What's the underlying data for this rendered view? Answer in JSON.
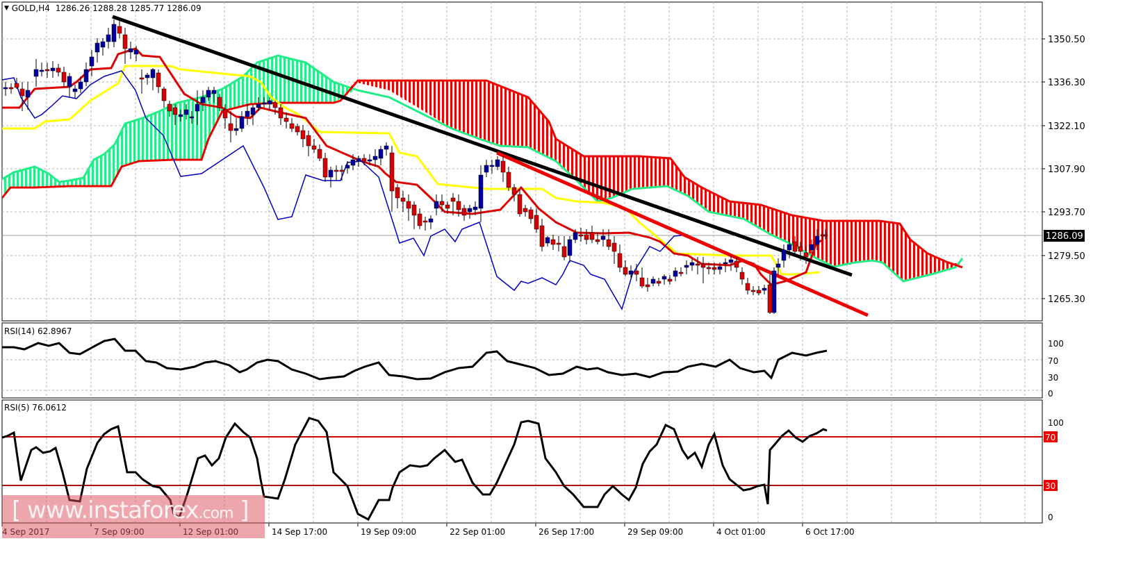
{
  "header": {
    "menu_icon": "triangle-down-icon",
    "symbol": "GOLD,H4",
    "ohlc": "1286.26 1288.28 1285.77 1286.09"
  },
  "price_axis": {
    "ticks": [
      "1350.50",
      "1336.30",
      "1322.10",
      "1307.90",
      "1293.70",
      "1279.50",
      "1265.30"
    ],
    "current_price": "1286.09"
  },
  "time_axis": {
    "ticks": [
      "4 Sep 2017",
      "7 Sep 09:00",
      "12 Sep 01:00",
      "14 Sep 17:00",
      "19 Sep 09:00",
      "22 Sep 01:00",
      "26 Sep 17:00",
      "29 Sep 09:00",
      "4 Oct 01:00",
      "6 Oct 17:00"
    ]
  },
  "rsi14": {
    "label": "RSI(14) 62.8967",
    "axis_ticks": [
      "100",
      "70",
      "30",
      "0"
    ]
  },
  "rsi5": {
    "label": "RSI(5) 76.0612",
    "axis_ticks": [
      "100",
      "0"
    ],
    "level_labels": [
      "70",
      "30"
    ]
  },
  "watermark": {
    "text": "[ www.instaforex",
    "suffix": ".com",
    "close": " ]"
  },
  "colors": {
    "bull_candle": "#0000a0",
    "bear_candle": "#dd0000",
    "tenkan": "#dd0000",
    "kijun": "#ffff00",
    "chikou": "#0000c0",
    "cloud_bull": "#22ee88",
    "cloud_bear": "#ee0000",
    "trendline_black": "#000000",
    "trendline_red": "#ee0000",
    "rsi_levels": "#cc0000"
  },
  "chart_data": [
    {
      "type": "candlestick",
      "title": "GOLD,H4",
      "subtitle": "O 1286.26 H 1288.28 L 1285.77 C 1286.09",
      "indicators": [
        "Ichimoku Kinko Hyo (Tenkan red, Kijun yellow, Chikou blue, Kumo cloud green/red)",
        "Black descending trendline",
        "Red descending trendline"
      ],
      "x_ticks": [
        "4 Sep 2017",
        "7 Sep 09:00",
        "12 Sep 01:00",
        "14 Sep 17:00",
        "19 Sep 09:00",
        "22 Sep 01:00",
        "26 Sep 17:00",
        "29 Sep 09:00",
        "4 Oct 01:00",
        "6 Oct 17:00"
      ],
      "y_ticks": [
        1350.5,
        1336.3,
        1322.1,
        1307.9,
        1293.7,
        1279.5,
        1265.3
      ],
      "ylim": [
        1258,
        1362
      ],
      "last_price": 1286.09,
      "approx_close_path": {
        "dates": [
          "4 Sep",
          "7 Sep",
          "8 Sep",
          "12 Sep",
          "14 Sep",
          "18 Sep",
          "19 Sep",
          "21 Sep",
          "22 Sep",
          "25 Sep",
          "26 Sep",
          "28 Sep",
          "29 Sep",
          "2 Oct",
          "4 Oct",
          "5 Oct",
          "6 Oct",
          "9 Oct"
        ],
        "values": [
          1334,
          1350,
          1340,
          1326,
          1329,
          1318,
          1308,
          1298,
          1292,
          1303,
          1292,
          1285,
          1278,
          1271,
          1275,
          1270,
          1262,
          1286
        ]
      },
      "trendlines": [
        {
          "name": "black",
          "from": [
            "7 Sep",
            1354
          ],
          "to": [
            "9 Oct",
            1273
          ]
        },
        {
          "name": "red",
          "from": [
            "22 Sep",
            1313
          ],
          "to": [
            "10 Oct",
            1260
          ]
        }
      ],
      "grid": true
    },
    {
      "type": "line",
      "title": "RSI(14) 62.8967",
      "ylim": [
        0,
        100
      ],
      "y_ticks": [
        100,
        70,
        30,
        0
      ],
      "last_value": 62.8967,
      "approx_values": [
        68,
        73,
        72,
        78,
        62,
        58,
        38,
        34,
        48,
        52,
        38,
        32,
        30,
        45,
        40,
        38,
        28,
        30,
        38,
        42,
        52,
        44,
        42,
        62,
        58,
        40,
        30,
        32,
        48,
        40,
        32,
        30,
        36,
        46,
        40,
        38,
        48,
        40,
        36,
        26,
        48,
        58,
        56,
        62,
        63
      ]
    },
    {
      "type": "line",
      "title": "RSI(5) 76.0612",
      "ylim": [
        0,
        100
      ],
      "y_ticks": [
        100,
        70,
        30,
        0
      ],
      "levels": [
        70,
        30
      ],
      "last_value": 76.0612,
      "approx_values": [
        88,
        65,
        78,
        72,
        40,
        78,
        92,
        70,
        28,
        30,
        15,
        10,
        55,
        60,
        24,
        16,
        70,
        72,
        38,
        20,
        5,
        30,
        35,
        55,
        72,
        65,
        20,
        15,
        12,
        58,
        62,
        50,
        42,
        88,
        88,
        40,
        25,
        15,
        18,
        50,
        55,
        45,
        15,
        28,
        25,
        72,
        72,
        40,
        58,
        62,
        72,
        60,
        30,
        28,
        15,
        72,
        78,
        70,
        80,
        78
      ]
    }
  ]
}
